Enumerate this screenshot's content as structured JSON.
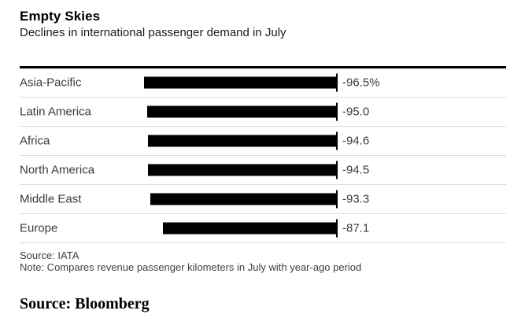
{
  "header": {
    "title": "Empty Skies",
    "subtitle": "Declines in international passenger demand in July"
  },
  "chart_data": {
    "type": "bar",
    "orientation": "horizontal",
    "title": "Empty Skies",
    "subtitle": "Declines in international passenger demand in July",
    "categories": [
      "Asia-Pacific",
      "Latin America",
      "Africa",
      "North America",
      "Middle East",
      "Europe"
    ],
    "values": [
      -96.5,
      -95.0,
      -94.6,
      -94.5,
      -93.3,
      -87.1
    ],
    "value_labels": [
      "-96.5%",
      "-95.0",
      "-94.6",
      "-94.5",
      "-93.3",
      "-87.1"
    ],
    "unit": "percent",
    "xlim": [
      -100,
      0
    ],
    "bars_anchored_at_zero_right": true,
    "zero_baseline_tick_per_row": true,
    "grid": "light horizontal row separators",
    "legend": false,
    "bar_color": "#000000"
  },
  "footer": {
    "source": "Source: IATA",
    "note": "Note: Compares revenue passenger kilometers in July with year-ago period"
  },
  "caption": {
    "text": "Source: Bloomberg"
  },
  "colors": {
    "background": "#ffffff",
    "bar": "#000000",
    "top_rule": "#000000",
    "row_separator": "#dcdcdc",
    "category_text": "#3b3b3b",
    "value_text": "#3b3b3b",
    "footer_text": "#404040",
    "title_text": "#000000"
  }
}
